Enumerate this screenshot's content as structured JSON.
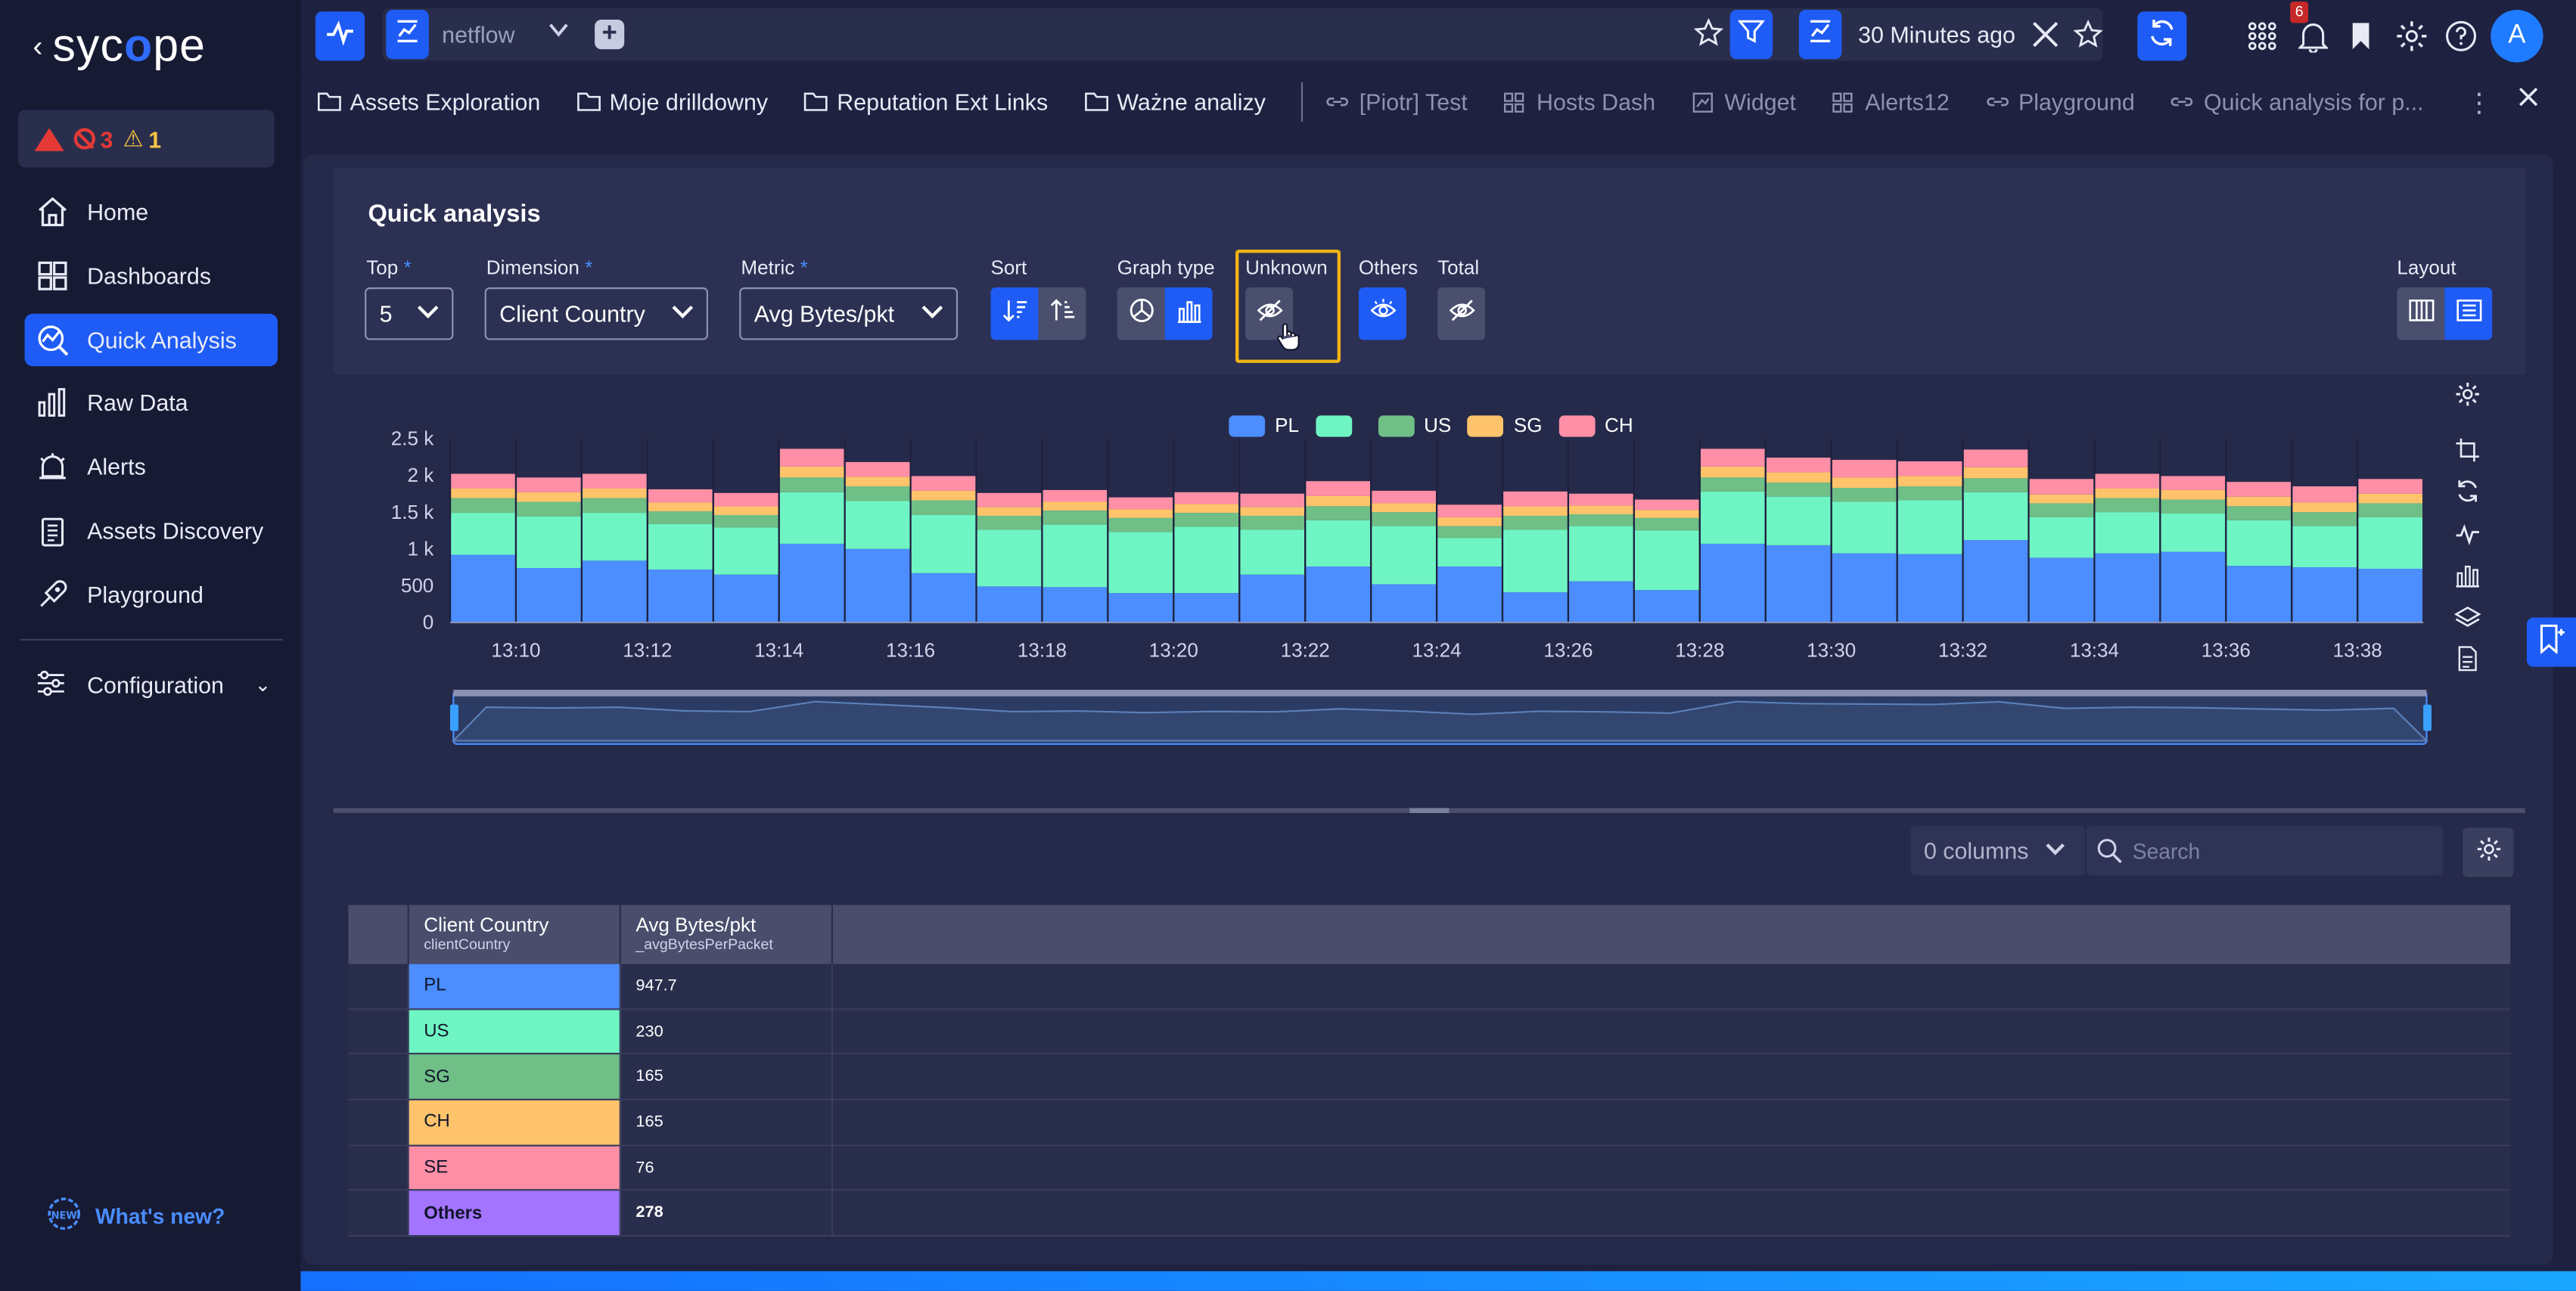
{
  "app": {
    "logo_text": "sycope",
    "alerts": {
      "critical": "3",
      "warning": "1"
    }
  },
  "sidebar": {
    "items": [
      {
        "label": "Home",
        "icon": "home-icon",
        "active": false
      },
      {
        "label": "Dashboards",
        "icon": "dashboards-icon",
        "active": false
      },
      {
        "label": "Quick Analysis",
        "icon": "quick-analysis-icon",
        "active": true
      },
      {
        "label": "Raw Data",
        "icon": "raw-data-icon",
        "active": false
      },
      {
        "label": "Alerts",
        "icon": "alerts-icon",
        "active": false
      },
      {
        "label": "Assets Discovery",
        "icon": "assets-discovery-icon",
        "active": false
      },
      {
        "label": "Playground",
        "icon": "playground-icon",
        "active": false
      }
    ],
    "config_label": "Configuration",
    "whats_new": "What's new?"
  },
  "topbar": {
    "datasource": "netflow",
    "time_range": "30 Minutes ago",
    "notifications_count": "6",
    "avatar_initial": "A"
  },
  "bookmarks": [
    {
      "label": "Assets Exploration",
      "kind": "folder"
    },
    {
      "label": "Moje drilldowny",
      "kind": "folder"
    },
    {
      "label": "Reputation Ext Links",
      "kind": "folder"
    },
    {
      "label": "Ważne analizy",
      "kind": "folder"
    },
    {
      "label": "[Piotr] Test",
      "kind": "link"
    },
    {
      "label": "Hosts Dash",
      "kind": "dash"
    },
    {
      "label": "Widget",
      "kind": "widget"
    },
    {
      "label": "Alerts12",
      "kind": "dash"
    },
    {
      "label": "Playground",
      "kind": "link"
    },
    {
      "label": "Quick analysis for p...",
      "kind": "link"
    }
  ],
  "quick_analysis": {
    "title": "Quick analysis",
    "top_label": "Top",
    "top_value": "5",
    "dimension_label": "Dimension",
    "dimension_value": "Client Country",
    "metric_label": "Metric",
    "metric_value": "Avg Bytes/pkt",
    "sort_label": "Sort",
    "graph_type_label": "Graph type",
    "unknown_label": "Unknown",
    "others_label": "Others",
    "total_label": "Total",
    "layout_label": "Layout",
    "required_mark": "*"
  },
  "colors": {
    "accent": "#1f5cf5",
    "highlight": "#f2b416",
    "PL": "#4c8dff",
    "US": "#6ff5c3",
    "SG": "#6fbf87",
    "CH": "#ffc46b",
    "SE": "#ff8fa6",
    "Others": "#a374ff"
  },
  "chart_data": {
    "type": "bar",
    "stacked": true,
    "legend": [
      "PL",
      "US",
      "SG",
      "CH"
    ],
    "x_ticks": [
      "13:10",
      "13:12",
      "13:14",
      "13:16",
      "13:18",
      "13:20",
      "13:22",
      "13:24",
      "13:26",
      "13:28",
      "13:30",
      "13:32",
      "13:34",
      "13:36",
      "13:38"
    ],
    "y_ticks": [
      "2.5 k",
      "2 k",
      "1.5 k",
      "1 k",
      "500",
      "0"
    ],
    "ylim": [
      0,
      2500
    ],
    "series": [
      {
        "name": "PL",
        "values": [
          920,
          740,
          840,
          720,
          650,
          1070,
          1000,
          670,
          490,
          480,
          400,
          400,
          650,
          760,
          520,
          760,
          410,
          560,
          440,
          1070,
          1050,
          940,
          930,
          1120,
          880,
          940,
          960,
          770,
          750,
          730
        ]
      },
      {
        "name": "US",
        "values": [
          570,
          700,
          650,
          620,
          640,
          700,
          650,
          790,
          770,
          850,
          830,
          900,
          610,
          630,
          790,
          390,
          850,
          750,
          810,
          710,
          660,
          700,
          730,
          650,
          550,
          560,
          520,
          620,
          560,
          700
        ]
      },
      {
        "name": "SG",
        "values": [
          200,
          200,
          200,
          170,
          170,
          200,
          200,
          200,
          190,
          190,
          190,
          190,
          190,
          190,
          190,
          160,
          190,
          160,
          170,
          190,
          190,
          190,
          190,
          190,
          190,
          190,
          190,
          190,
          190,
          190
        ]
      },
      {
        "name": "CH",
        "values": [
          130,
          130,
          130,
          120,
          120,
          150,
          130,
          130,
          120,
          120,
          120,
          120,
          120,
          140,
          120,
          120,
          130,
          120,
          110,
          150,
          140,
          140,
          140,
          150,
          120,
          130,
          130,
          130,
          130,
          130
        ]
      },
      {
        "name": "SE",
        "values": [
          200,
          200,
          200,
          180,
          180,
          240,
          200,
          200,
          190,
          160,
          160,
          160,
          180,
          200,
          170,
          170,
          200,
          160,
          140,
          240,
          200,
          240,
          200,
          240,
          210,
          200,
          190,
          200,
          220,
          200
        ]
      }
    ]
  },
  "table": {
    "columns_select": "0 columns",
    "search_placeholder": "Search",
    "headers": [
      {
        "title": "Client Country",
        "sub": "clientCountry"
      },
      {
        "title": "Avg Bytes/pkt",
        "sub": "_avgBytesPerPacket"
      }
    ],
    "rows": [
      {
        "country": "PL",
        "value": "947.7",
        "bold": false
      },
      {
        "country": "US",
        "value": "230",
        "bold": false
      },
      {
        "country": "SG",
        "value": "165",
        "bold": false
      },
      {
        "country": "CH",
        "value": "165",
        "bold": false
      },
      {
        "country": "SE",
        "value": "76",
        "bold": false
      },
      {
        "country": "Others",
        "value": "278",
        "bold": true
      }
    ]
  }
}
